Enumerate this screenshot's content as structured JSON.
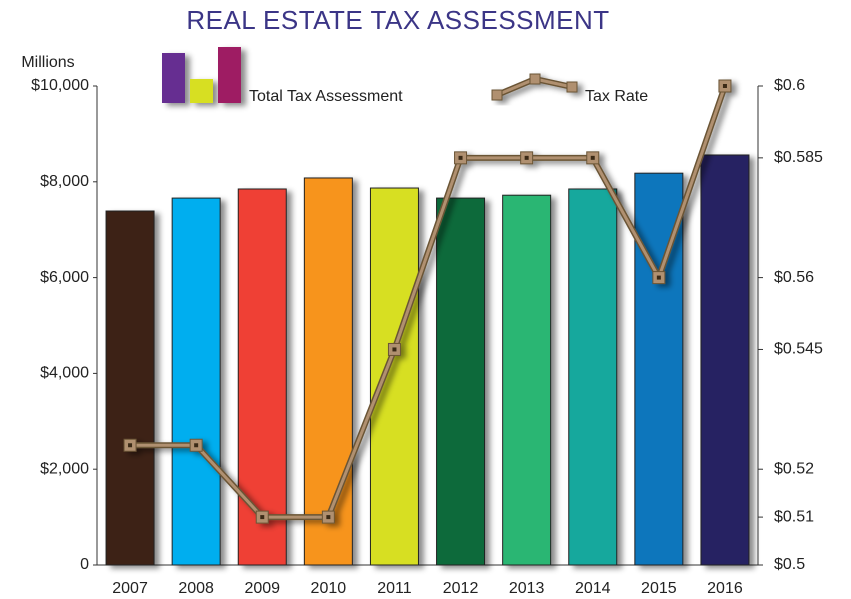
{
  "chart_data": {
    "type": "bar",
    "title": "REAL ESTATE TAX ASSESSMENT",
    "y_label": "Millions",
    "categories": [
      "2007",
      "2008",
      "2009",
      "2010",
      "2011",
      "2012",
      "2013",
      "2014",
      "2015",
      "2016"
    ],
    "series": [
      {
        "name": "Total Tax Assessment",
        "colors": [
          "#3c2214",
          "#00aeef",
          "#ef4136",
          "#f7941d",
          "#d7df23",
          "#0d6b3a",
          "#2bb673",
          "#12a89d",
          "#1076bc",
          "#262262"
        ],
        "values": [
          7390,
          7660,
          7850,
          8080,
          7870,
          7660,
          7720,
          7850,
          8180,
          8560
        ]
      },
      {
        "name": "Tax Rate",
        "type": "line",
        "axis": "y2",
        "color": "#b09070",
        "values": [
          0.525,
          0.525,
          0.51,
          0.51,
          0.545,
          0.585,
          0.585,
          0.585,
          0.56,
          0.6
        ]
      }
    ],
    "ylim": [
      0,
      10000
    ],
    "yticks": [
      0,
      {
        "value": 2000,
        "label": "$2,000"
      },
      {
        "value": 4000,
        "label": "$4,000"
      },
      {
        "value": 6000,
        "label": "$6,000"
      },
      {
        "value": 8000,
        "label": "$8,000"
      },
      {
        "value": 10000,
        "label": "$10,000"
      }
    ],
    "y2lim": [
      0.5,
      0.6
    ],
    "y2ticks": [
      {
        "value": 0.5,
        "label": "$0.5"
      },
      {
        "value": 0.51,
        "label": "$0.51"
      },
      {
        "value": 0.52,
        "label": "$0.52"
      },
      {
        "value": 0.545,
        "label": "$0.545"
      },
      {
        "value": 0.56,
        "label": "$0.56"
      },
      {
        "value": 0.585,
        "label": "$0.585"
      },
      {
        "value": 0.6,
        "label": "$0.6"
      }
    ]
  }
}
